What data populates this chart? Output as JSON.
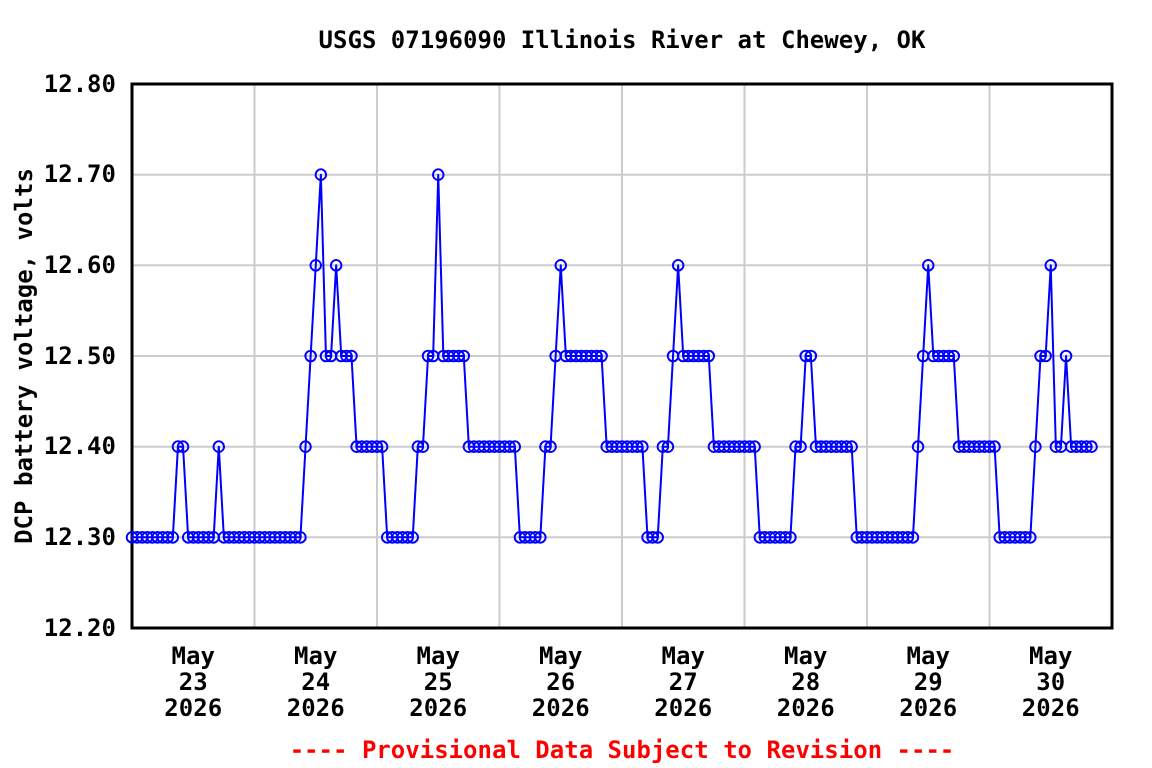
{
  "chart_data": {
    "type": "line",
    "title": "USGS 07196090 Illinois River at Chewey, OK",
    "ylabel": "DCP battery voltage, volts",
    "annotations": [
      "---- Provisional Data Subject to Revision ----"
    ],
    "xlim": [
      "2026-05-23T00:00",
      "2026-05-31T00:00"
    ],
    "xticks": [
      {
        "value": "2026-05-23T00:00",
        "label": null
      },
      {
        "value": "2026-05-23T12:00",
        "label": "May\n23\n2026"
      },
      {
        "value": "2026-05-24T00:00",
        "label": null
      },
      {
        "value": "2026-05-24T12:00",
        "label": "May\n24\n2026"
      },
      {
        "value": "2026-05-25T00:00",
        "label": null
      },
      {
        "value": "2026-05-25T12:00",
        "label": "May\n25\n2026"
      },
      {
        "value": "2026-05-26T00:00",
        "label": null
      },
      {
        "value": "2026-05-26T12:00",
        "label": "May\n26\n2026"
      },
      {
        "value": "2026-05-27T00:00",
        "label": null
      },
      {
        "value": "2026-05-27T12:00",
        "label": "May\n27\n2026"
      },
      {
        "value": "2026-05-28T00:00",
        "label": null
      },
      {
        "value": "2026-05-28T12:00",
        "label": "May\n28\n2026"
      },
      {
        "value": "2026-05-29T00:00",
        "label": null
      },
      {
        "value": "2026-05-29T12:00",
        "label": "May\n29\n2026"
      },
      {
        "value": "2026-05-30T00:00",
        "label": null
      },
      {
        "value": "2026-05-30T12:00",
        "label": "May\n30\n2026"
      },
      {
        "value": "2026-05-31T00:00",
        "label": null
      }
    ],
    "ylim": [
      12.2,
      12.8
    ],
    "yticks": [
      {
        "value": 12.2,
        "label": "12.20"
      },
      {
        "value": 12.3,
        "label": "12.30"
      },
      {
        "value": 12.4,
        "label": "12.40"
      },
      {
        "value": 12.5,
        "label": "12.50"
      },
      {
        "value": 12.6,
        "label": "12.60"
      },
      {
        "value": 12.7,
        "label": "12.70"
      },
      {
        "value": 12.8,
        "label": "12.80"
      }
    ],
    "grid": true,
    "marker": "circle",
    "line_style": "solid",
    "x": [
      "2026-05-23T00:00",
      "2026-05-23T01:00",
      "2026-05-23T02:00",
      "2026-05-23T03:00",
      "2026-05-23T04:00",
      "2026-05-23T05:00",
      "2026-05-23T06:00",
      "2026-05-23T07:00",
      "2026-05-23T08:00",
      "2026-05-23T09:00",
      "2026-05-23T10:00",
      "2026-05-23T11:00",
      "2026-05-23T12:00",
      "2026-05-23T13:00",
      "2026-05-23T14:00",
      "2026-05-23T15:00",
      "2026-05-23T16:00",
      "2026-05-23T17:00",
      "2026-05-23T18:00",
      "2026-05-23T19:00",
      "2026-05-23T20:00",
      "2026-05-23T21:00",
      "2026-05-23T22:00",
      "2026-05-23T23:00",
      "2026-05-24T00:00",
      "2026-05-24T01:00",
      "2026-05-24T02:00",
      "2026-05-24T03:00",
      "2026-05-24T04:00",
      "2026-05-24T05:00",
      "2026-05-24T06:00",
      "2026-05-24T07:00",
      "2026-05-24T08:00",
      "2026-05-24T09:00",
      "2026-05-24T10:00",
      "2026-05-24T11:00",
      "2026-05-24T12:00",
      "2026-05-24T13:00",
      "2026-05-24T14:00",
      "2026-05-24T15:00",
      "2026-05-24T16:00",
      "2026-05-24T17:00",
      "2026-05-24T18:00",
      "2026-05-24T19:00",
      "2026-05-24T20:00",
      "2026-05-24T21:00",
      "2026-05-24T22:00",
      "2026-05-24T23:00",
      "2026-05-25T00:00",
      "2026-05-25T01:00",
      "2026-05-25T02:00",
      "2026-05-25T03:00",
      "2026-05-25T04:00",
      "2026-05-25T05:00",
      "2026-05-25T06:00",
      "2026-05-25T07:00",
      "2026-05-25T08:00",
      "2026-05-25T09:00",
      "2026-05-25T10:00",
      "2026-05-25T11:00",
      "2026-05-25T12:00",
      "2026-05-25T13:00",
      "2026-05-25T14:00",
      "2026-05-25T15:00",
      "2026-05-25T16:00",
      "2026-05-25T17:00",
      "2026-05-25T18:00",
      "2026-05-25T19:00",
      "2026-05-25T20:00",
      "2026-05-25T21:00",
      "2026-05-25T22:00",
      "2026-05-25T23:00",
      "2026-05-26T00:00",
      "2026-05-26T01:00",
      "2026-05-26T02:00",
      "2026-05-26T03:00",
      "2026-05-26T04:00",
      "2026-05-26T05:00",
      "2026-05-26T06:00",
      "2026-05-26T07:00",
      "2026-05-26T08:00",
      "2026-05-26T09:00",
      "2026-05-26T10:00",
      "2026-05-26T11:00",
      "2026-05-26T12:00",
      "2026-05-26T13:00",
      "2026-05-26T14:00",
      "2026-05-26T15:00",
      "2026-05-26T16:00",
      "2026-05-26T17:00",
      "2026-05-26T18:00",
      "2026-05-26T19:00",
      "2026-05-26T20:00",
      "2026-05-26T21:00",
      "2026-05-26T22:00",
      "2026-05-26T23:00",
      "2026-05-27T00:00",
      "2026-05-27T01:00",
      "2026-05-27T02:00",
      "2026-05-27T03:00",
      "2026-05-27T04:00",
      "2026-05-27T05:00",
      "2026-05-27T06:00",
      "2026-05-27T07:00",
      "2026-05-27T08:00",
      "2026-05-27T09:00",
      "2026-05-27T10:00",
      "2026-05-27T11:00",
      "2026-05-27T12:00",
      "2026-05-27T13:00",
      "2026-05-27T14:00",
      "2026-05-27T15:00",
      "2026-05-27T16:00",
      "2026-05-27T17:00",
      "2026-05-27T18:00",
      "2026-05-27T19:00",
      "2026-05-27T20:00",
      "2026-05-27T21:00",
      "2026-05-27T22:00",
      "2026-05-27T23:00",
      "2026-05-28T00:00",
      "2026-05-28T01:00",
      "2026-05-28T02:00",
      "2026-05-28T03:00",
      "2026-05-28T04:00",
      "2026-05-28T05:00",
      "2026-05-28T06:00",
      "2026-05-28T07:00",
      "2026-05-28T08:00",
      "2026-05-28T09:00",
      "2026-05-28T10:00",
      "2026-05-28T11:00",
      "2026-05-28T12:00",
      "2026-05-28T13:00",
      "2026-05-28T14:00",
      "2026-05-28T15:00",
      "2026-05-28T16:00",
      "2026-05-28T17:00",
      "2026-05-28T18:00",
      "2026-05-28T19:00",
      "2026-05-28T20:00",
      "2026-05-28T21:00",
      "2026-05-28T22:00",
      "2026-05-28T23:00",
      "2026-05-29T00:00",
      "2026-05-29T01:00",
      "2026-05-29T02:00",
      "2026-05-29T03:00",
      "2026-05-29T04:00",
      "2026-05-29T05:00",
      "2026-05-29T06:00",
      "2026-05-29T07:00",
      "2026-05-29T08:00",
      "2026-05-29T09:00",
      "2026-05-29T10:00",
      "2026-05-29T11:00",
      "2026-05-29T12:00",
      "2026-05-29T13:00",
      "2026-05-29T14:00",
      "2026-05-29T15:00",
      "2026-05-29T16:00",
      "2026-05-29T17:00",
      "2026-05-29T18:00",
      "2026-05-29T19:00",
      "2026-05-29T20:00",
      "2026-05-29T21:00",
      "2026-05-29T22:00",
      "2026-05-29T23:00",
      "2026-05-30T00:00",
      "2026-05-30T01:00",
      "2026-05-30T02:00",
      "2026-05-30T03:00",
      "2026-05-30T04:00",
      "2026-05-30T05:00",
      "2026-05-30T06:00",
      "2026-05-30T07:00",
      "2026-05-30T08:00",
      "2026-05-30T09:00",
      "2026-05-30T10:00",
      "2026-05-30T11:00",
      "2026-05-30T12:00",
      "2026-05-30T13:00",
      "2026-05-30T14:00",
      "2026-05-30T15:00",
      "2026-05-30T16:00",
      "2026-05-30T17:00",
      "2026-05-30T18:00",
      "2026-05-30T19:00",
      "2026-05-30T20:00"
    ],
    "series": [
      {
        "color": "#0000ff",
        "values": [
          12.3,
          12.3,
          12.3,
          12.3,
          12.3,
          12.3,
          12.3,
          12.3,
          12.3,
          12.4,
          12.4,
          12.3,
          12.3,
          12.3,
          12.3,
          12.3,
          12.3,
          12.4,
          12.3,
          12.3,
          12.3,
          12.3,
          12.3,
          12.3,
          12.3,
          12.3,
          12.3,
          12.3,
          12.3,
          12.3,
          12.3,
          12.3,
          12.3,
          12.3,
          12.4,
          12.5,
          12.6,
          12.7,
          12.5,
          12.5,
          12.6,
          12.5,
          12.5,
          12.5,
          12.4,
          12.4,
          12.4,
          12.4,
          12.4,
          12.4,
          12.3,
          12.3,
          12.3,
          12.3,
          12.3,
          12.3,
          12.4,
          12.4,
          12.5,
          12.5,
          12.7,
          12.5,
          12.5,
          12.5,
          12.5,
          12.5,
          12.4,
          12.4,
          12.4,
          12.4,
          12.4,
          12.4,
          12.4,
          12.4,
          12.4,
          12.4,
          12.3,
          12.3,
          12.3,
          12.3,
          12.3,
          12.4,
          12.4,
          12.5,
          12.6,
          12.5,
          12.5,
          12.5,
          12.5,
          12.5,
          12.5,
          12.5,
          12.5,
          12.4,
          12.4,
          12.4,
          12.4,
          12.4,
          12.4,
          12.4,
          12.4,
          12.3,
          12.3,
          12.3,
          12.4,
          12.4,
          12.5,
          12.6,
          12.5,
          12.5,
          12.5,
          12.5,
          12.5,
          12.5,
          12.4,
          12.4,
          12.4,
          12.4,
          12.4,
          12.4,
          12.4,
          12.4,
          12.4,
          12.3,
          12.3,
          12.3,
          12.3,
          12.3,
          12.3,
          12.3,
          12.4,
          12.4,
          12.5,
          12.5,
          12.4,
          12.4,
          12.4,
          12.4,
          12.4,
          12.4,
          12.4,
          12.4,
          12.3,
          12.3,
          12.3,
          12.3,
          12.3,
          12.3,
          12.3,
          12.3,
          12.3,
          12.3,
          12.3,
          12.3,
          12.4,
          12.5,
          12.6,
          12.5,
          12.5,
          12.5,
          12.5,
          12.5,
          12.4,
          12.4,
          12.4,
          12.4,
          12.4,
          12.4,
          12.4,
          12.4,
          12.3,
          12.3,
          12.3,
          12.3,
          12.3,
          12.3,
          12.3,
          12.4,
          12.5,
          12.5,
          12.6,
          12.4,
          12.4,
          12.5,
          12.4,
          12.4,
          12.4,
          12.4,
          12.4
        ]
      }
    ]
  }
}
